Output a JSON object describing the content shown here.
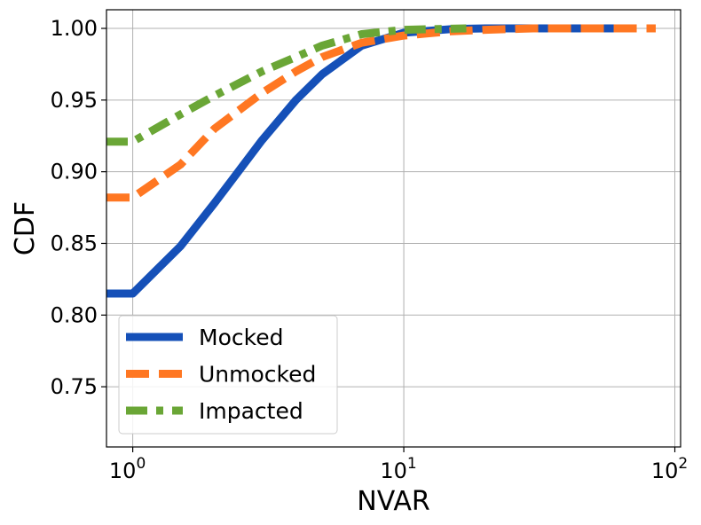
{
  "chart_data": {
    "type": "line",
    "xlabel": "NVAR",
    "ylabel": "CDF",
    "x_scale": "log",
    "xlim": [
      0.8,
      105
    ],
    "ylim": [
      0.708,
      1.013
    ],
    "x_ticks": [
      {
        "value": 1,
        "base": "10",
        "exp": "0"
      },
      {
        "value": 10,
        "base": "10",
        "exp": "1"
      },
      {
        "value": 100,
        "base": "10",
        "exp": "2"
      }
    ],
    "y_ticks": [
      {
        "value": 0.75,
        "label": "0.75"
      },
      {
        "value": 0.8,
        "label": "0.80"
      },
      {
        "value": 0.85,
        "label": "0.85"
      },
      {
        "value": 0.9,
        "label": "0.90"
      },
      {
        "value": 0.95,
        "label": "0.95"
      },
      {
        "value": 1.0,
        "label": "1.00"
      }
    ],
    "grid": true,
    "legend_position": "lower-left",
    "series": [
      {
        "name": "Mocked",
        "color": "#1550b8",
        "style": "solid",
        "points": [
          [
            0.8,
            0.815
          ],
          [
            1,
            0.815
          ],
          [
            1.5,
            0.848
          ],
          [
            2,
            0.878
          ],
          [
            3,
            0.922
          ],
          [
            4,
            0.95
          ],
          [
            5,
            0.968
          ],
          [
            7,
            0.988
          ],
          [
            10,
            0.997
          ],
          [
            15,
            0.9995
          ],
          [
            20,
            1.0
          ],
          [
            30,
            1.0
          ],
          [
            50,
            1.0
          ],
          [
            60,
            1.0
          ]
        ]
      },
      {
        "name": "Unmocked",
        "color": "#ff7722",
        "style": "dashed",
        "points": [
          [
            0.8,
            0.882
          ],
          [
            1,
            0.882
          ],
          [
            1.5,
            0.905
          ],
          [
            2,
            0.93
          ],
          [
            3,
            0.955
          ],
          [
            4,
            0.97
          ],
          [
            5,
            0.98
          ],
          [
            7,
            0.99
          ],
          [
            10,
            0.995
          ],
          [
            15,
            0.998
          ],
          [
            20,
            0.999
          ],
          [
            30,
            1.0
          ],
          [
            50,
            1.0
          ],
          [
            85,
            1.0
          ]
        ]
      },
      {
        "name": "Impacted",
        "color": "#6aa636",
        "style": "dashdot",
        "points": [
          [
            0.8,
            0.921
          ],
          [
            1,
            0.921
          ],
          [
            1.5,
            0.94
          ],
          [
            2,
            0.953
          ],
          [
            3,
            0.97
          ],
          [
            4,
            0.98
          ],
          [
            5,
            0.988
          ],
          [
            7,
            0.996
          ],
          [
            10,
            0.999
          ],
          [
            17,
            1.0
          ]
        ]
      }
    ]
  }
}
